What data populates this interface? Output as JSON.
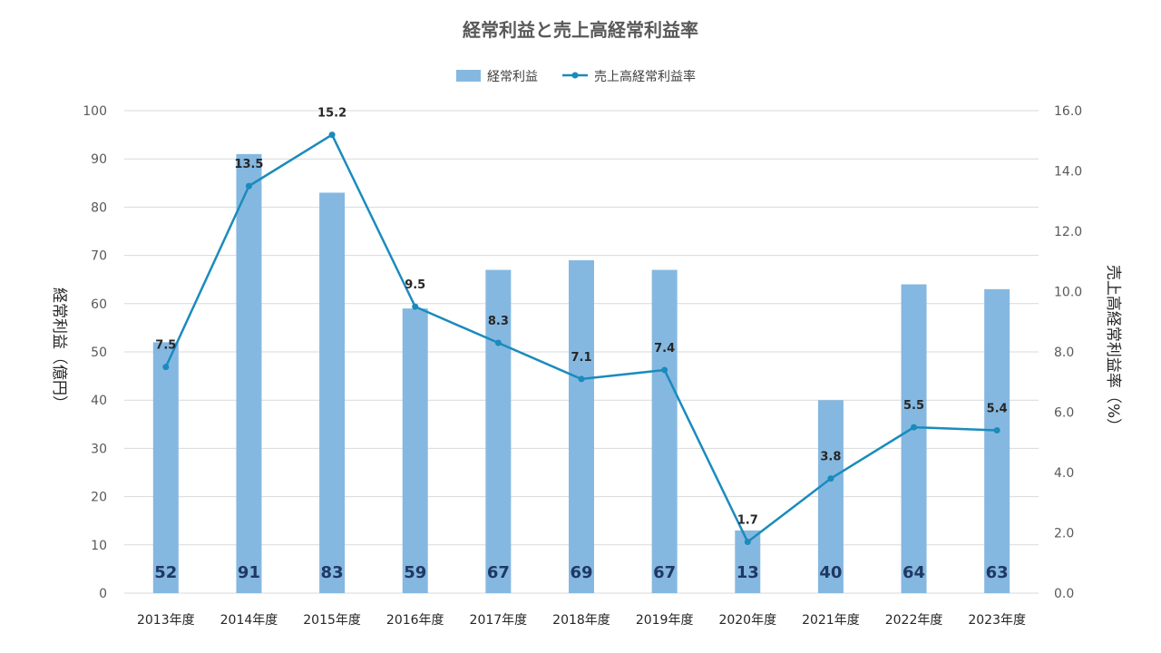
{
  "chart_data": {
    "type": "bar+line",
    "title": "経常利益と売上高経常利益率",
    "categories": [
      "2013年度",
      "2014年度",
      "2015年度",
      "2016年度",
      "2017年度",
      "2018年度",
      "2019年度",
      "2020年度",
      "2021年度",
      "2022年度",
      "2023年度"
    ],
    "series": [
      {
        "name": "経常利益",
        "type": "bar",
        "axis": "left",
        "color": "#85b8e0",
        "values": [
          52,
          91,
          83,
          59,
          67,
          69,
          67,
          13,
          40,
          64,
          63
        ],
        "labels": [
          "52",
          "91",
          "83",
          "59",
          "67",
          "69",
          "67",
          "13",
          "40",
          "64",
          "63"
        ]
      },
      {
        "name": "売上高経常利益率",
        "type": "line",
        "axis": "right",
        "color": "#1a8bbd",
        "values": [
          7.5,
          13.5,
          15.2,
          9.5,
          8.3,
          7.1,
          7.4,
          1.7,
          3.8,
          5.5,
          5.4
        ],
        "labels": [
          "7.5",
          "13.5",
          "15.2",
          "9.5",
          "8.3",
          "7.1",
          "7.4",
          "1.7",
          "3.8",
          "5.5",
          "5.4"
        ]
      }
    ],
    "ylabel_left": "経常利益（億円）",
    "ylabel_right": "売上高経常利益率（%）",
    "ylim_left": [
      0,
      100
    ],
    "ylim_right": [
      0,
      16
    ],
    "yticks_left": [
      "0",
      "10",
      "20",
      "30",
      "40",
      "50",
      "60",
      "70",
      "80",
      "90",
      "100"
    ],
    "yticks_right": [
      "0.0",
      "2.0",
      "4.0",
      "6.0",
      "8.0",
      "10.0",
      "12.0",
      "14.0",
      "16.0"
    ],
    "grid": true,
    "legend_position": "top-center"
  }
}
